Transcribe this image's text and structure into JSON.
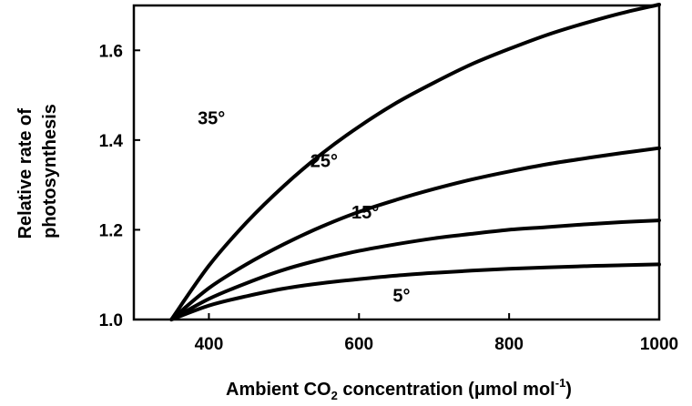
{
  "chart_data": {
    "type": "line",
    "xlabel": {
      "text_before": "Ambient CO",
      "subscript": "2",
      "text_middle": " concentration (μmol mol",
      "superscript": "-1",
      "text_after": ")"
    },
    "ylabel": [
      "Relative rate of",
      "photosynthesis"
    ],
    "xlim": [
      300,
      1000
    ],
    "ylim": [
      1.0,
      1.7
    ],
    "xticks": [
      400,
      600,
      800,
      1000
    ],
    "yticks": [
      "1.0",
      "1.2",
      "1.4",
      "1.6"
    ],
    "grid": false,
    "legend": "none",
    "series": [
      {
        "name": "35°",
        "x": [
          350,
          400,
          450,
          500,
          550,
          600,
          650,
          700,
          750,
          800,
          850,
          900,
          950,
          1000
        ],
        "y": [
          1.0,
          1.12,
          1.216,
          1.298,
          1.369,
          1.43,
          1.483,
          1.528,
          1.569,
          1.603,
          1.634,
          1.66,
          1.683,
          1.702
        ]
      },
      {
        "name": "25°",
        "x": [
          350,
          400,
          450,
          500,
          550,
          600,
          650,
          700,
          750,
          800,
          850,
          900,
          950,
          1000
        ],
        "y": [
          1.0,
          1.07,
          1.123,
          1.168,
          1.207,
          1.24,
          1.267,
          1.291,
          1.312,
          1.33,
          1.346,
          1.359,
          1.371,
          1.382
        ]
      },
      {
        "name": "15°",
        "x": [
          350,
          400,
          450,
          500,
          550,
          600,
          650,
          700,
          750,
          800,
          850,
          900,
          950,
          1000
        ],
        "y": [
          1.0,
          1.046,
          1.081,
          1.111,
          1.134,
          1.153,
          1.168,
          1.181,
          1.191,
          1.2,
          1.206,
          1.212,
          1.217,
          1.221
        ]
      },
      {
        "name": "5°",
        "x": [
          350,
          400,
          450,
          500,
          550,
          600,
          650,
          700,
          750,
          800,
          850,
          900,
          950,
          1000
        ],
        "y": [
          1.0,
          1.031,
          1.052,
          1.069,
          1.081,
          1.09,
          1.098,
          1.104,
          1.109,
          1.113,
          1.116,
          1.119,
          1.121,
          1.123
        ]
      }
    ],
    "curve_labels": [
      {
        "series": 0,
        "text": "35°",
        "x": 385,
        "y": 1.435
      },
      {
        "series": 1,
        "text": "25°",
        "x": 535,
        "y": 1.34
      },
      {
        "series": 2,
        "text": "15°",
        "x": 590,
        "y": 1.225
      },
      {
        "series": 3,
        "text": "5°",
        "x": 645,
        "y": 1.04
      }
    ],
    "colors": {
      "line": "#000000",
      "axis": "#000000"
    }
  }
}
